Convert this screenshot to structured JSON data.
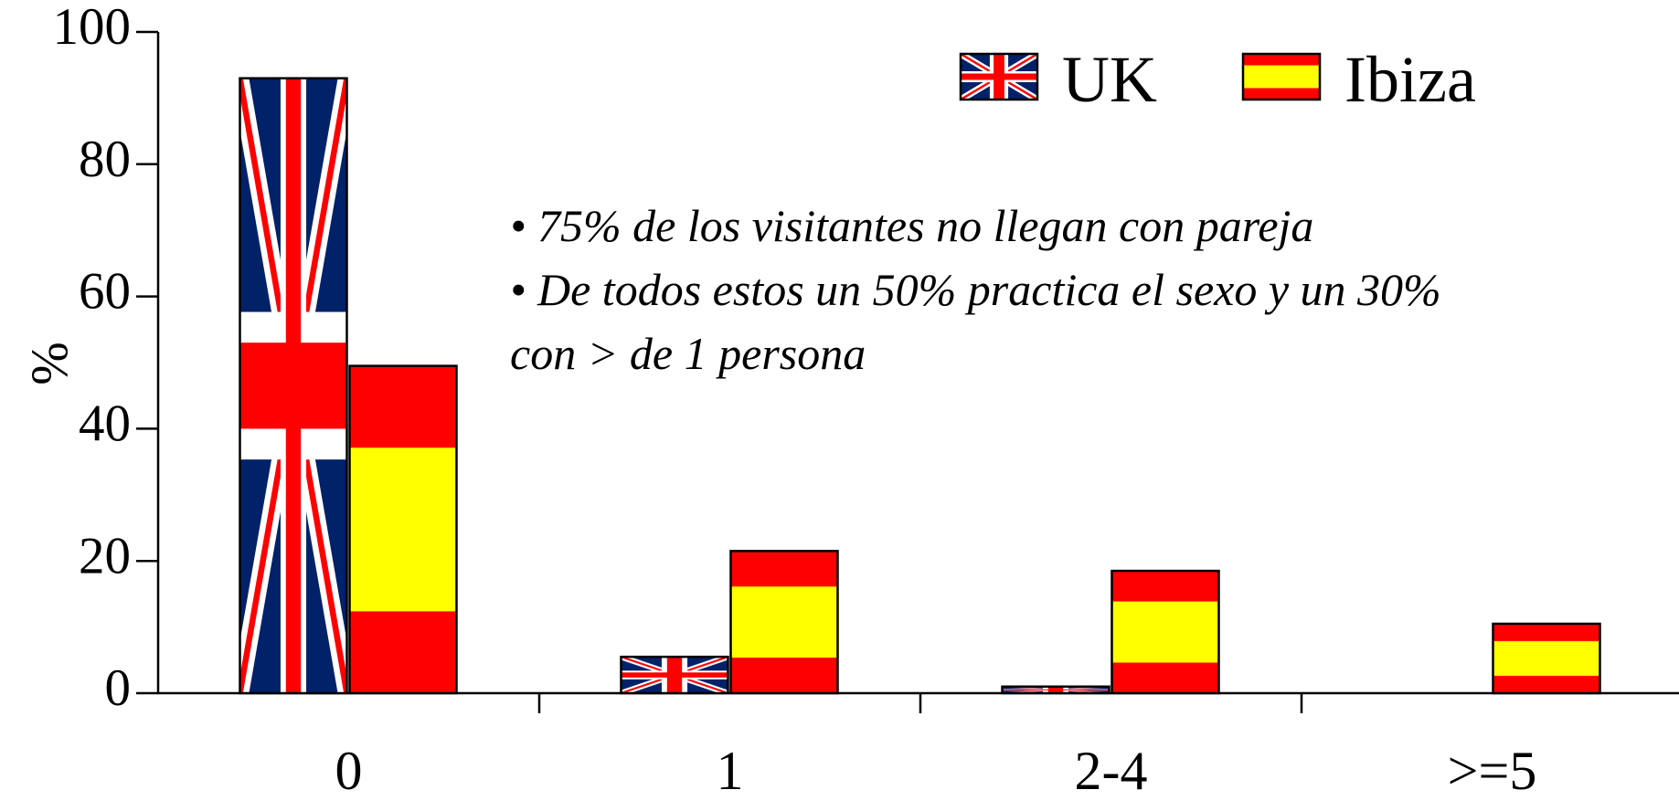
{
  "chart_data": {
    "type": "bar",
    "y_label": "%",
    "categories": [
      "0",
      "1",
      "2-4",
      ">=5"
    ],
    "series": [
      {
        "name": "UK",
        "color": "#012169",
        "values": [
          93,
          5.5,
          1,
          0
        ]
      },
      {
        "name": "Ibiza",
        "color": "#ff0000",
        "values": [
          49.5,
          21.5,
          18.5,
          10.5
        ]
      }
    ],
    "ylim": [
      0,
      100
    ],
    "yticks": [
      0,
      20,
      40,
      60,
      80,
      100
    ],
    "annotations": [
      "• 75% de los visitantes no llegan con pareja",
      "• De todos estos un 50% practica el sexo y un 30%",
      "con > de 1 persona"
    ]
  }
}
